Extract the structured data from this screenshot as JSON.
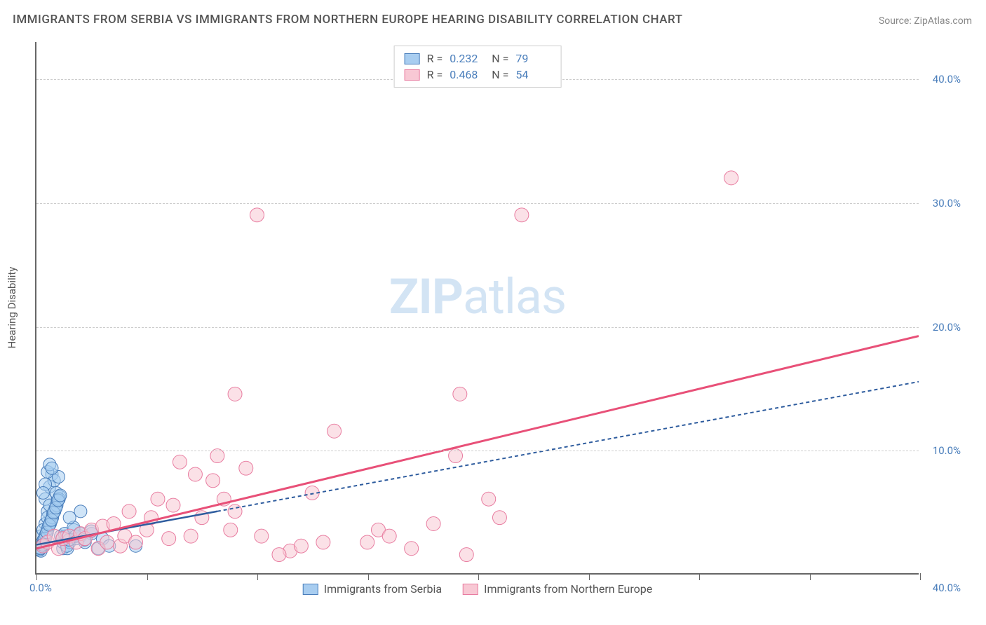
{
  "title": "IMMIGRANTS FROM SERBIA VS IMMIGRANTS FROM NORTHERN EUROPE HEARING DISABILITY CORRELATION CHART",
  "source": "Source: ZipAtlas.com",
  "watermark_zip": "ZIP",
  "watermark_atlas": "atlas",
  "ylabel": "Hearing Disability",
  "chart": {
    "type": "scatter",
    "xlim": [
      0,
      40
    ],
    "ylim": [
      0,
      43
    ],
    "xtick_positions": [
      0,
      5,
      10,
      15,
      20,
      25,
      30,
      35,
      40
    ],
    "xlabel_min": "0.0%",
    "xlabel_max": "40.0%",
    "yticks": [
      {
        "pos": 10,
        "label": "10.0%"
      },
      {
        "pos": 20,
        "label": "20.0%"
      },
      {
        "pos": 30,
        "label": "30.0%"
      },
      {
        "pos": 40,
        "label": "40.0%"
      }
    ],
    "background_color": "#ffffff",
    "grid_color": "#cccccc",
    "axis_color": "#666666",
    "series": [
      {
        "name": "Immigrants from Serbia",
        "r_value": "0.232",
        "n_value": "79",
        "marker_fill": "#a8cdf0",
        "marker_stroke": "#4a7ebb",
        "marker_radius": 9,
        "marker_opacity": 0.55,
        "trend": {
          "x1": 0,
          "y1": 2.3,
          "x2": 40,
          "y2": 15.5,
          "solid_until_x": 8.2,
          "color": "#2e5c9e",
          "width": 2.5,
          "dash": "5,4"
        },
        "points": [
          [
            0.1,
            2.0
          ],
          [
            0.2,
            1.8
          ],
          [
            0.3,
            2.5
          ],
          [
            0.2,
            3.0
          ],
          [
            0.4,
            4.0
          ],
          [
            0.3,
            3.5
          ],
          [
            0.5,
            5.0
          ],
          [
            0.4,
            6.0
          ],
          [
            0.6,
            7.0
          ],
          [
            0.7,
            8.0
          ],
          [
            0.8,
            7.5
          ],
          [
            0.5,
            4.5
          ],
          [
            0.6,
            5.5
          ],
          [
            0.9,
            6.5
          ],
          [
            1.0,
            7.8
          ],
          [
            1.1,
            3.0
          ],
          [
            1.2,
            2.0
          ],
          [
            0.3,
            2.2
          ],
          [
            0.4,
            2.8
          ],
          [
            0.2,
            2.3
          ],
          [
            0.15,
            1.9
          ],
          [
            0.25,
            2.2
          ],
          [
            0.35,
            2.6
          ],
          [
            0.45,
            3.2
          ],
          [
            0.55,
            3.8
          ],
          [
            0.65,
            4.2
          ],
          [
            0.75,
            4.8
          ],
          [
            0.85,
            5.2
          ],
          [
            0.95,
            5.8
          ],
          [
            1.05,
            6.2
          ],
          [
            0.12,
            2.1
          ],
          [
            0.22,
            2.4
          ],
          [
            0.32,
            2.7
          ],
          [
            0.42,
            3.1
          ],
          [
            0.52,
            3.6
          ],
          [
            0.62,
            4.0
          ],
          [
            0.72,
            4.5
          ],
          [
            0.82,
            5.0
          ],
          [
            0.92,
            5.5
          ],
          [
            1.02,
            6.0
          ],
          [
            1.2,
            2.5
          ],
          [
            1.3,
            3.0
          ],
          [
            1.4,
            2.0
          ],
          [
            1.5,
            2.5
          ],
          [
            1.7,
            3.5
          ],
          [
            1.8,
            2.8
          ],
          [
            2.0,
            3.0
          ],
          [
            2.2,
            2.5
          ],
          [
            2.5,
            3.2
          ],
          [
            2.8,
            2.0
          ],
          [
            3.0,
            2.8
          ],
          [
            3.3,
            2.2
          ],
          [
            0.18,
            2.0
          ],
          [
            0.28,
            2.3
          ],
          [
            0.38,
            2.8
          ],
          [
            0.48,
            3.3
          ],
          [
            0.58,
            3.9
          ],
          [
            0.68,
            4.3
          ],
          [
            0.78,
            4.9
          ],
          [
            0.88,
            5.3
          ],
          [
            0.98,
            5.9
          ],
          [
            1.08,
            6.3
          ],
          [
            1.18,
            2.8
          ],
          [
            1.28,
            3.2
          ],
          [
            1.38,
            2.2
          ],
          [
            1.48,
            2.7
          ],
          [
            1.68,
            3.7
          ],
          [
            1.78,
            3.0
          ],
          [
            1.98,
            3.2
          ],
          [
            2.18,
            2.7
          ],
          [
            4.5,
            2.2
          ],
          [
            2.48,
            3.4
          ],
          [
            0.5,
            8.2
          ],
          [
            0.6,
            8.8
          ],
          [
            0.4,
            7.2
          ],
          [
            0.3,
            6.5
          ],
          [
            0.7,
            8.5
          ],
          [
            1.5,
            4.5
          ],
          [
            2.0,
            5.0
          ]
        ]
      },
      {
        "name": "Immigrants from Northern Europe",
        "r_value": "0.468",
        "n_value": "54",
        "marker_fill": "#f8c8d4",
        "marker_stroke": "#e87ca0",
        "marker_radius": 10,
        "marker_opacity": 0.55,
        "trend": {
          "x1": 0,
          "y1": 2.0,
          "x2": 40,
          "y2": 19.2,
          "solid_until_x": 40,
          "color": "#e85078",
          "width": 3,
          "dash": "none"
        },
        "points": [
          [
            0.3,
            2.2
          ],
          [
            0.5,
            2.5
          ],
          [
            0.8,
            3.0
          ],
          [
            1.0,
            2.0
          ],
          [
            1.2,
            2.8
          ],
          [
            1.5,
            3.0
          ],
          [
            1.8,
            2.5
          ],
          [
            2.0,
            3.2
          ],
          [
            2.2,
            2.8
          ],
          [
            2.5,
            3.5
          ],
          [
            2.8,
            2.0
          ],
          [
            3.0,
            3.8
          ],
          [
            3.2,
            2.5
          ],
          [
            3.5,
            4.0
          ],
          [
            3.8,
            2.2
          ],
          [
            4.0,
            3.0
          ],
          [
            4.2,
            5.0
          ],
          [
            4.5,
            2.5
          ],
          [
            5.0,
            3.5
          ],
          [
            5.2,
            4.5
          ],
          [
            5.5,
            6.0
          ],
          [
            6.0,
            2.8
          ],
          [
            6.2,
            5.5
          ],
          [
            6.5,
            9.0
          ],
          [
            7.0,
            3.0
          ],
          [
            7.2,
            8.0
          ],
          [
            7.5,
            4.5
          ],
          [
            8.0,
            7.5
          ],
          [
            8.2,
            9.5
          ],
          [
            8.5,
            6.0
          ],
          [
            9.0,
            5.0
          ],
          [
            9.5,
            8.5
          ],
          [
            10.0,
            29.0
          ],
          [
            10.2,
            3.0
          ],
          [
            11.5,
            1.8
          ],
          [
            12.0,
            2.2
          ],
          [
            12.5,
            6.5
          ],
          [
            13.5,
            11.5
          ],
          [
            15.0,
            2.5
          ],
          [
            15.5,
            3.5
          ],
          [
            16.0,
            3.0
          ],
          [
            17.0,
            2.0
          ],
          [
            18.0,
            4.0
          ],
          [
            19.2,
            14.5
          ],
          [
            19.0,
            9.5
          ],
          [
            19.5,
            1.5
          ],
          [
            20.5,
            6.0
          ],
          [
            21.0,
            4.5
          ],
          [
            22.0,
            29.0
          ],
          [
            31.5,
            32.0
          ],
          [
            9.0,
            14.5
          ],
          [
            11.0,
            1.5
          ],
          [
            13.0,
            2.5
          ],
          [
            8.8,
            3.5
          ]
        ]
      }
    ]
  },
  "legend_bottom": [
    {
      "label": "Immigrants from Serbia",
      "fill": "#a8cdf0",
      "stroke": "#4a7ebb"
    },
    {
      "label": "Immigrants from Northern Europe",
      "fill": "#f8c8d4",
      "stroke": "#e87ca0"
    }
  ]
}
